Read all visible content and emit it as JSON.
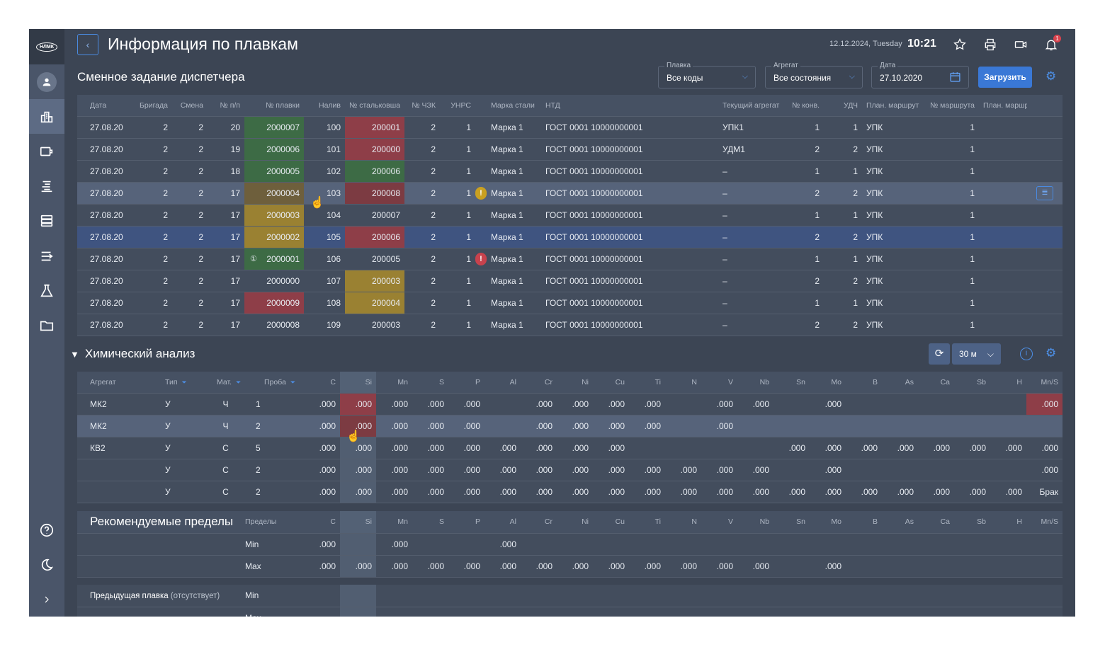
{
  "sidebar": {
    "logo": "НЛМК",
    "items": [
      "avatar",
      "factory",
      "video",
      "sort-lines",
      "list",
      "route",
      "flask",
      "folder"
    ],
    "bottom": [
      "help",
      "theme",
      "expand"
    ]
  },
  "header": {
    "title": "Информация по плавкам",
    "date": "12.12.2024, Tuesday",
    "time": "10:21",
    "notifications": "1"
  },
  "shift": {
    "title": "Сменное задание диспетчера",
    "filters": [
      {
        "label": "Плавка",
        "value": "Все коды"
      },
      {
        "label": "Агрегат",
        "value": "Все состояния"
      },
      {
        "label": "Дата",
        "value": "27.10.2020"
      }
    ],
    "load_label": "Загрузить",
    "columns": [
      "Дата",
      "Бригада",
      "Смена",
      "№ п/п",
      "№ плавки",
      "Налив",
      "№ стальковша",
      "№ ЧЗК",
      "УНРС",
      "",
      "Марка стали",
      "НТД",
      "Текущий агрегат",
      "№ конв.",
      "УДЧ",
      "План. маршрут",
      "№ маршрута",
      "План. маршрут",
      ""
    ],
    "rows": [
      {
        "cells": [
          "27.08.20",
          "2",
          "2",
          "20",
          "2000007",
          "100",
          "200001",
          "2",
          "1",
          "",
          "Марка 1",
          "ГОСТ 0001 10000000001",
          "УПК1",
          "1",
          "1",
          "УПК",
          "1",
          ""
        ],
        "heat_status": "green",
        "ladle_status": "red"
      },
      {
        "cells": [
          "27.08.20",
          "2",
          "2",
          "19",
          "2000006",
          "101",
          "200000",
          "2",
          "1",
          "",
          "Марка 1",
          "ГОСТ 0001 10000000001",
          "УДМ1",
          "2",
          "2",
          "УПК",
          "1",
          ""
        ],
        "heat_status": "green",
        "ladle_status": "red"
      },
      {
        "cells": [
          "27.08.20",
          "2",
          "2",
          "18",
          "2000005",
          "102",
          "200006",
          "2",
          "1",
          "",
          "Марка 1",
          "ГОСТ 0001 10000000001",
          "–",
          "1",
          "1",
          "УПК",
          "1",
          ""
        ],
        "heat_status": "green",
        "ladle_status": "green"
      },
      {
        "cells": [
          "27.08.20",
          "2",
          "2",
          "17",
          "2000004",
          "103",
          "200008",
          "2",
          "1",
          "!",
          "Марка 1",
          "ГОСТ 0001 10000000001",
          "–",
          "2",
          "2",
          "УПК",
          "1",
          ""
        ],
        "heat_status": "dyellow",
        "ladle_status": "dred",
        "warning": "yellow",
        "state": "hover",
        "action": "document-icon"
      },
      {
        "cells": [
          "27.08.20",
          "2",
          "2",
          "17",
          "2000003",
          "104",
          "200007",
          "2",
          "1",
          "",
          "Марка 1",
          "ГОСТ 0001 10000000001",
          "–",
          "1",
          "1",
          "УПК",
          "1",
          ""
        ],
        "heat_status": "yellow",
        "ladle_status": ""
      },
      {
        "cells": [
          "27.08.20",
          "2",
          "2",
          "17",
          "2000002",
          "105",
          "200006",
          "2",
          "1",
          "",
          "Марка 1",
          "ГОСТ 0001 10000000001",
          "–",
          "2",
          "2",
          "УПК",
          "1",
          ""
        ],
        "heat_status": "yellow",
        "ladle_status": "red",
        "state": "selected"
      },
      {
        "cells": [
          "27.08.20",
          "2",
          "2",
          "17",
          "2000001",
          "106",
          "200005",
          "2",
          "1",
          "!",
          "Марка 1",
          "ГОСТ 0001 10000000001",
          "–",
          "1",
          "1",
          "УПК",
          "1",
          ""
        ],
        "heat_status": "green",
        "ladle_status": "",
        "warning": "red",
        "heat_badge": "①"
      },
      {
        "cells": [
          "27.08.20",
          "2",
          "2",
          "17",
          "2000000",
          "107",
          "200003",
          "2",
          "1",
          "",
          "Марка 1",
          "ГОСТ 0001 10000000001",
          "–",
          "2",
          "2",
          "УПК",
          "1",
          ""
        ],
        "heat_status": "",
        "ladle_status": "yellow"
      },
      {
        "cells": [
          "27.08.20",
          "2",
          "2",
          "17",
          "2000009",
          "108",
          "200004",
          "2",
          "1",
          "",
          "Марка 1",
          "ГОСТ 0001 10000000001",
          "–",
          "1",
          "1",
          "УПК",
          "1",
          ""
        ],
        "heat_status": "red",
        "ladle_status": "yellow"
      },
      {
        "cells": [
          "27.08.20",
          "2",
          "2",
          "17",
          "2000008",
          "109",
          "200003",
          "2",
          "1",
          "",
          "Марка 1",
          "ГОСТ 0001 10000000001",
          "–",
          "2",
          "2",
          "УПК",
          "1",
          ""
        ],
        "heat_status": "",
        "ladle_status": ""
      }
    ]
  },
  "chem": {
    "title": "Химический анализ",
    "period": "30 м",
    "columns": [
      "Агрегат",
      "Тип",
      "Мат.",
      "Проба"
    ],
    "elements": [
      "C",
      "Si",
      "Mn",
      "S",
      "P",
      "Al",
      "Cr",
      "Ni",
      "Cu",
      "Ti",
      "N",
      "V",
      "Nb",
      "Sn",
      "Mo",
      "B",
      "As",
      "Ca",
      "Sb",
      "H",
      "Mn/S"
    ],
    "rows": [
      {
        "cells": [
          "МК2",
          "У",
          "Ч",
          "1"
        ],
        "values": [
          ".000",
          ".000",
          ".000",
          ".000",
          ".000",
          "",
          ".000",
          ".000",
          ".000",
          ".000",
          "",
          ".000",
          ".000",
          "",
          ".000",
          "",
          "",
          "",
          "",
          "",
          ".000"
        ],
        "red": [
          1,
          20
        ]
      },
      {
        "cells": [
          "МК2",
          "У",
          "Ч",
          "2"
        ],
        "values": [
          ".000",
          ".000",
          ".000",
          ".000",
          ".000",
          "",
          ".000",
          ".000",
          ".000",
          ".000",
          "",
          ".000",
          "",
          "",
          "",
          "",
          "",
          "",
          "",
          "",
          ""
        ],
        "red": [
          1
        ],
        "state": "hover"
      },
      {
        "cells": [
          "КВ2",
          "У",
          "С",
          "5"
        ],
        "values": [
          ".000",
          ".000",
          ".000",
          ".000",
          ".000",
          ".000",
          ".000",
          ".000",
          ".000",
          "",
          "",
          "",
          "",
          ".000",
          ".000",
          ".000",
          ".000",
          ".000",
          ".000",
          ".000",
          ".000"
        ],
        "red": []
      },
      {
        "cells": [
          "",
          "У",
          "С",
          "2"
        ],
        "values": [
          ".000",
          ".000",
          ".000",
          ".000",
          ".000",
          ".000",
          ".000",
          ".000",
          ".000",
          ".000",
          ".000",
          ".000",
          ".000",
          "",
          ".000",
          "",
          "",
          "",
          "",
          "",
          ".000"
        ],
        "red": []
      },
      {
        "cells": [
          "",
          "У",
          "С",
          "2"
        ],
        "values": [
          ".000",
          ".000",
          ".000",
          ".000",
          ".000",
          ".000",
          ".000",
          ".000",
          ".000",
          ".000",
          ".000",
          ".000",
          ".000",
          ".000",
          ".000",
          ".000",
          ".000",
          ".000",
          ".000",
          ".000",
          "Брак"
        ],
        "red": []
      }
    ]
  },
  "limits": {
    "title": "Рекомендуемые пределы",
    "col_label": "Пределы",
    "rows": [
      {
        "label": "Min",
        "values": [
          ".000",
          "",
          ".000",
          "",
          "",
          ".000",
          "",
          "",
          "",
          "",
          "",
          "",
          "",
          "",
          "",
          "",
          "",
          "",
          "",
          "",
          ""
        ]
      },
      {
        "label": "Max",
        "values": [
          ".000",
          ".000",
          ".000",
          ".000",
          ".000",
          ".000",
          ".000",
          ".000",
          ".000",
          ".000",
          ".000",
          ".000",
          ".000",
          "",
          ".000",
          "",
          "",
          "",
          "",
          "",
          ""
        ]
      }
    ]
  },
  "previous": {
    "label": "Предыдущая плавка",
    "note": "(отсутствует)",
    "rows": [
      "Min",
      "Max"
    ]
  },
  "colors": {
    "accent": "#3a78d6",
    "ok": "#3d6b45",
    "error": "#8e3e48",
    "warning": "#9a8132",
    "selected": "#3f5480"
  }
}
